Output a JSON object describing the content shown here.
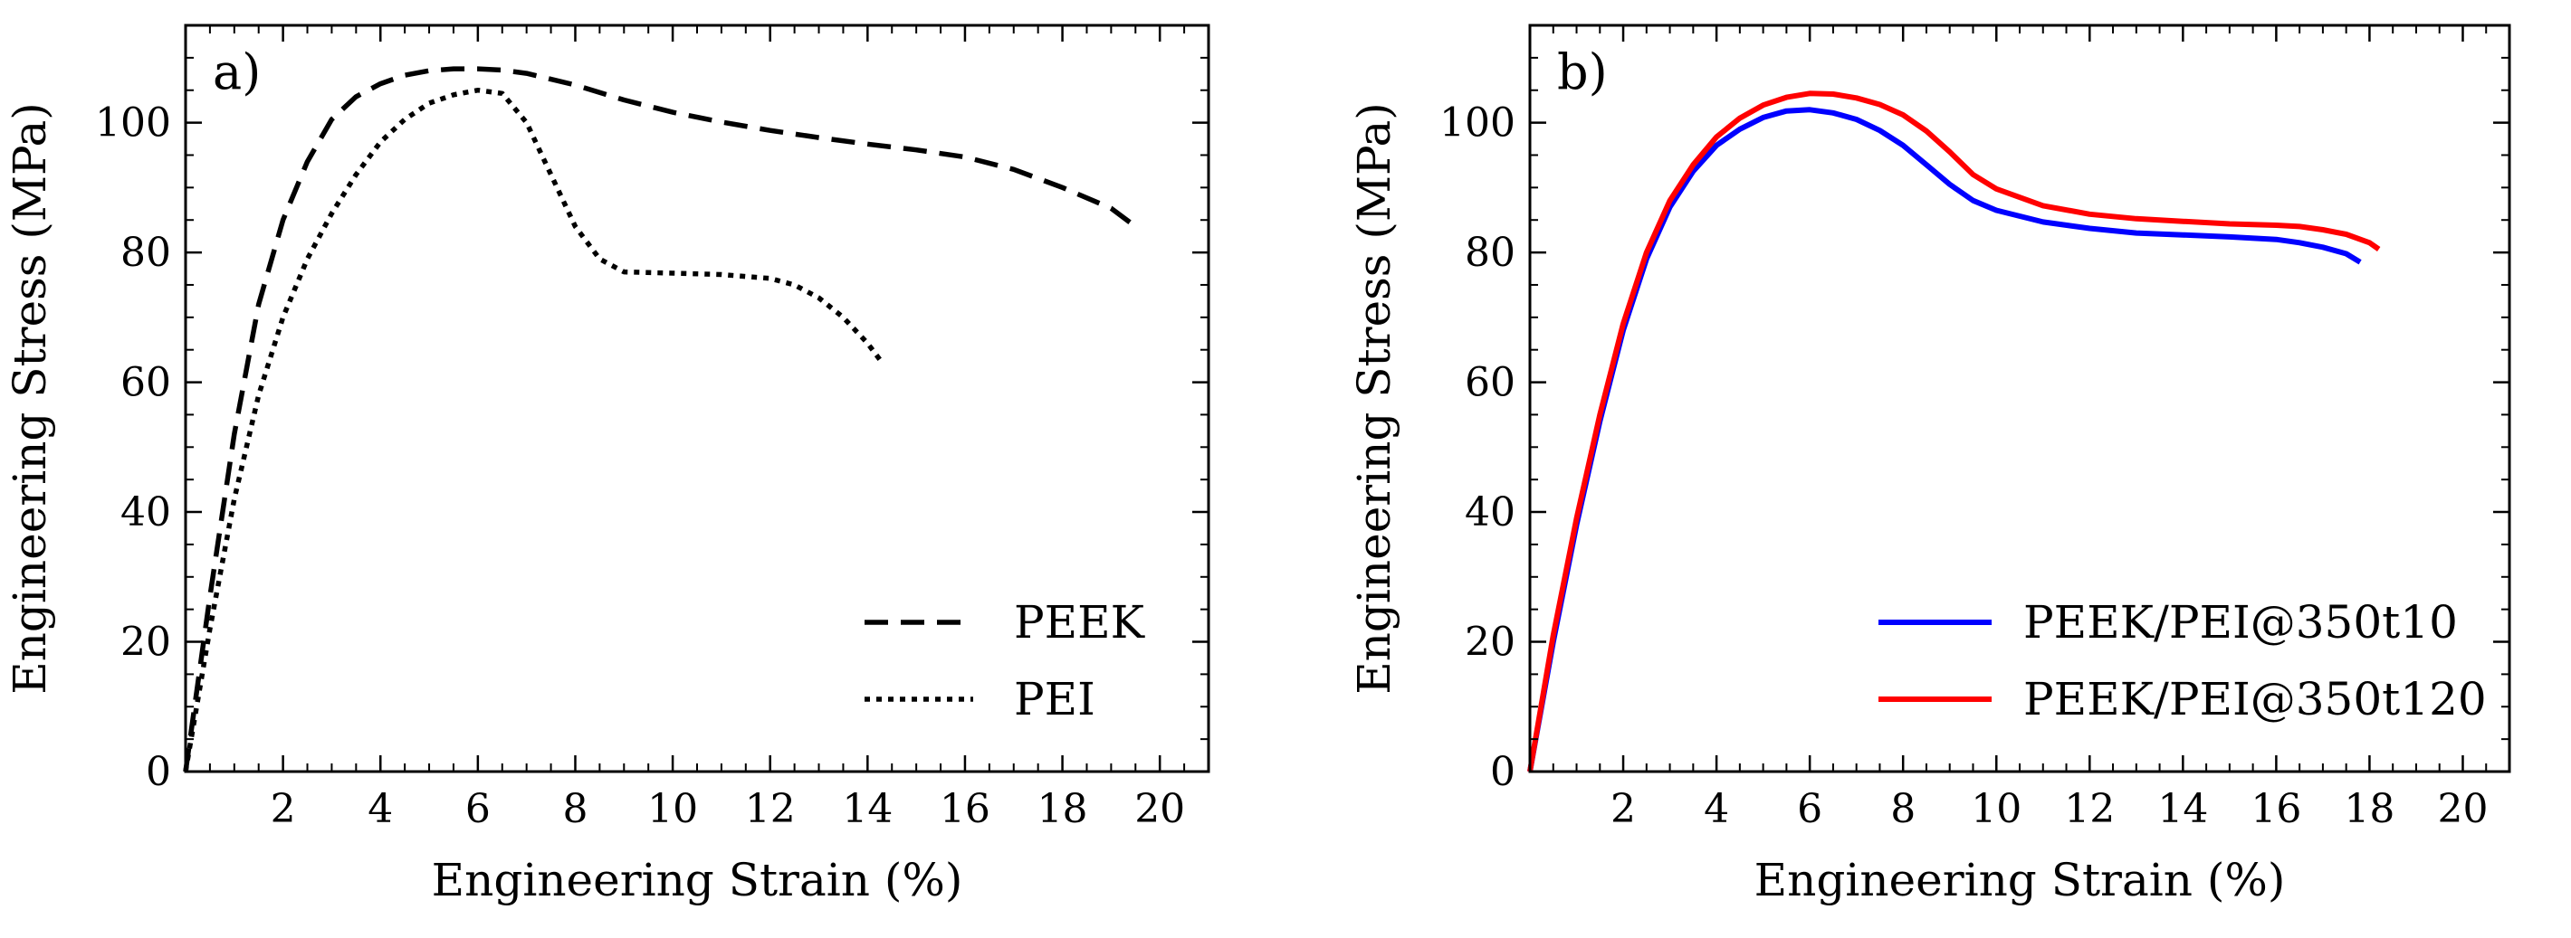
{
  "chart_data": [
    {
      "type": "line",
      "panel_label": "a)",
      "xlabel": "Engineering Strain (%)",
      "ylabel": "Engineering Stress (MPa)",
      "xlim": [
        0,
        21
      ],
      "ylim": [
        0,
        115
      ],
      "xticks": [
        2,
        4,
        6,
        8,
        10,
        12,
        14,
        16,
        18,
        20
      ],
      "yticks": [
        0,
        20,
        40,
        60,
        80,
        100
      ],
      "legend_position": "bottom-right",
      "series": [
        {
          "name": "PEEK",
          "color": "#000000",
          "style": "dashed",
          "x": [
            0,
            0.5,
            1.0,
            1.5,
            2.0,
            2.5,
            3.0,
            3.5,
            4.0,
            4.5,
            5.0,
            5.5,
            6.0,
            6.5,
            7.0,
            8.0,
            9.0,
            10.0,
            11.0,
            12.0,
            13.0,
            14.0,
            15.0,
            16.0,
            17.0,
            18.0,
            19.0,
            19.5
          ],
          "y": [
            0,
            27,
            52,
            72,
            85,
            94,
            100.5,
            104,
            106,
            107.3,
            108,
            108.3,
            108.3,
            108.1,
            107.6,
            105.8,
            103.5,
            101.6,
            100.1,
            98.8,
            97.7,
            96.7,
            95.8,
            94.7,
            92.8,
            90,
            86.8,
            84
          ]
        },
        {
          "name": "PEI",
          "color": "#000000",
          "style": "dotted",
          "x": [
            0,
            0.5,
            1.0,
            1.5,
            2.0,
            2.5,
            3.0,
            3.5,
            4.0,
            4.5,
            5.0,
            5.5,
            6.0,
            6.5,
            7.0,
            7.5,
            8.0,
            8.5,
            9.0,
            10.0,
            11.0,
            12.0,
            12.5,
            13.0,
            13.5,
            14.0,
            14.3
          ],
          "y": [
            0,
            22,
            42,
            58,
            70,
            79,
            86,
            92,
            97,
            100.5,
            103,
            104.3,
            105,
            104.5,
            100,
            92,
            84,
            79,
            77,
            76.8,
            76.6,
            76,
            75,
            73,
            70,
            66,
            63
          ]
        }
      ]
    },
    {
      "type": "line",
      "panel_label": "b)",
      "xlabel": "Engineering Strain (%)",
      "ylabel": "Engineering Stress (MPa)",
      "xlim": [
        0,
        21
      ],
      "ylim": [
        0,
        115
      ],
      "xticks": [
        2,
        4,
        6,
        8,
        10,
        12,
        14,
        16,
        18,
        20
      ],
      "yticks": [
        0,
        20,
        40,
        60,
        80,
        100
      ],
      "legend_position": "bottom-right",
      "series": [
        {
          "name": "PEEK/PEI@350t10",
          "color": "#0000ff",
          "style": "solid",
          "x": [
            0,
            0.5,
            1.0,
            1.5,
            2.0,
            2.5,
            3.0,
            3.5,
            4.0,
            4.5,
            5.0,
            5.5,
            6.0,
            6.5,
            7.0,
            7.5,
            8.0,
            8.5,
            9.0,
            9.5,
            10.0,
            11.0,
            12.0,
            13.0,
            14.0,
            15.0,
            16.0,
            16.5,
            17.0,
            17.5,
            17.8
          ],
          "y": [
            0,
            20,
            38,
            54,
            68,
            79,
            87,
            92.5,
            96.5,
            99,
            100.8,
            101.8,
            102,
            101.5,
            100.5,
            98.8,
            96.5,
            93.5,
            90.5,
            88,
            86.5,
            84.7,
            83.7,
            83,
            82.7,
            82.4,
            82,
            81.5,
            80.8,
            79.8,
            78.5
          ]
        },
        {
          "name": "PEEK/PEI@350t120",
          "color": "#ff0000",
          "style": "solid",
          "x": [
            0,
            0.5,
            1.0,
            1.5,
            2.0,
            2.5,
            3.0,
            3.5,
            4.0,
            4.5,
            5.0,
            5.5,
            6.0,
            6.5,
            7.0,
            7.5,
            8.0,
            8.5,
            9.0,
            9.5,
            10.0,
            11.0,
            12.0,
            13.0,
            14.0,
            15.0,
            16.0,
            16.5,
            17.0,
            17.5,
            18.0,
            18.2
          ],
          "y": [
            0,
            21,
            39,
            55,
            69,
            80,
            88,
            93.5,
            97.8,
            100.7,
            102.7,
            103.9,
            104.5,
            104.4,
            103.8,
            102.8,
            101.2,
            98.7,
            95.5,
            92,
            89.8,
            87.2,
            85.9,
            85.2,
            84.8,
            84.4,
            84.2,
            84,
            83.5,
            82.8,
            81.5,
            80.5
          ]
        }
      ]
    }
  ]
}
